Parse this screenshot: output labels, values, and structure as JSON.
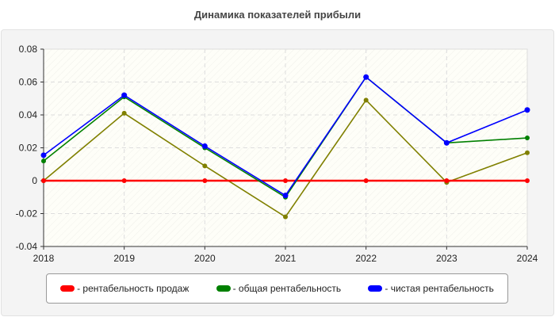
{
  "chart_data": {
    "type": "line",
    "title": "Динамика показателей прибыли",
    "categories": [
      "2018",
      "2019",
      "2020",
      "2021",
      "2022",
      "2023",
      "2024"
    ],
    "ylim": [
      -0.04,
      0.08
    ],
    "yticks": [
      "0.08",
      "0.06",
      "0.04",
      "0.02",
      "0",
      "-0.02",
      "-0.04"
    ],
    "ytick_values": [
      0.08,
      0.06,
      0.04,
      0.02,
      0,
      -0.02,
      -0.04
    ],
    "grid": true,
    "legend_position": "bottom",
    "series": [
      {
        "name": "- рентабельность продаж",
        "color": "#ff0000",
        "values": [
          0,
          0,
          0,
          0,
          0,
          0,
          0
        ]
      },
      {
        "name": "- общая рентабельность",
        "color": "#008000",
        "values": [
          0.012,
          0.051,
          0.02,
          -0.01,
          0.063,
          0.023,
          0.026
        ]
      },
      {
        "name": "- чистая рентабельность",
        "color": "#0000ff",
        "values": [
          0.0155,
          0.052,
          0.021,
          -0.009,
          0.063,
          0.023,
          0.043
        ]
      },
      {
        "color": "#808000",
        "values": [
          0,
          0.041,
          0.009,
          -0.022,
          0.049,
          -0.001,
          0.017
        ]
      }
    ]
  }
}
